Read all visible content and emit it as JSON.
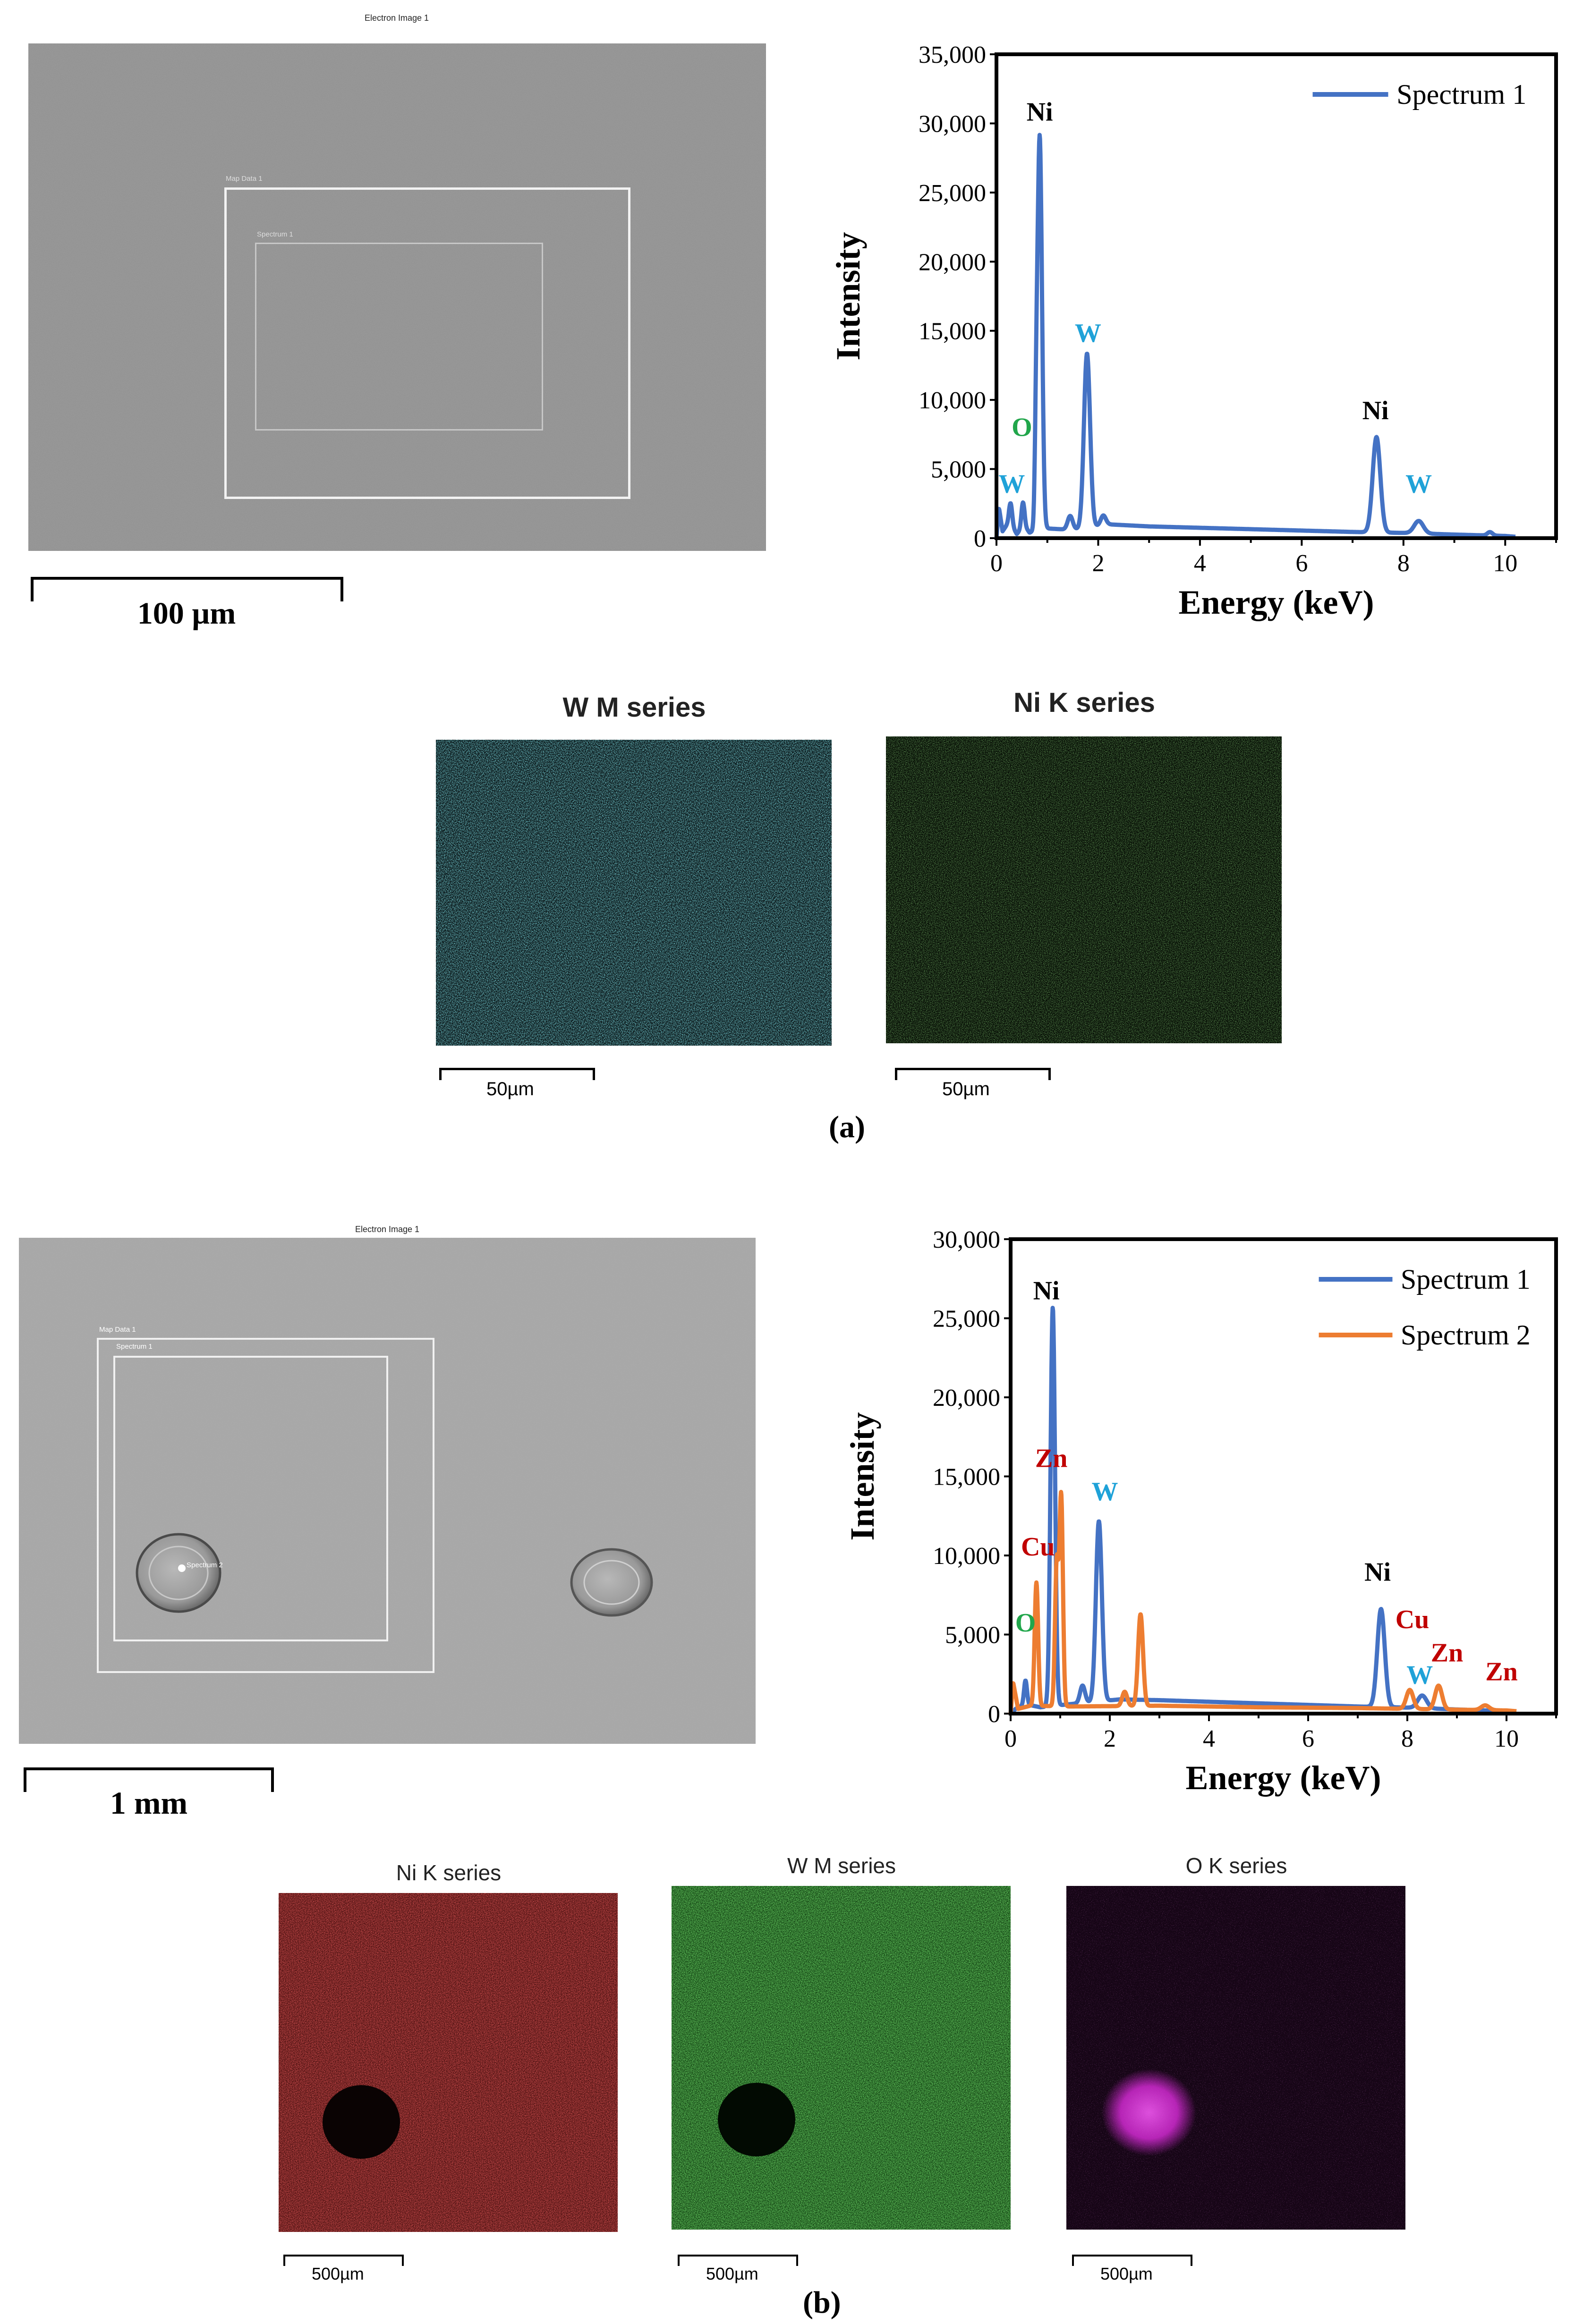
{
  "panel_a": {
    "label": "(a)",
    "sem": {
      "title": "Electron Image 1",
      "map_box": "Map Data 1",
      "spectrum_box": "Spectrum 1",
      "scale": "100 µm"
    },
    "maps": [
      {
        "title": "W M series",
        "scale": "50µm",
        "color": "#3fd9e8"
      },
      {
        "title": "Ni K series",
        "scale": "50µm",
        "color": "#3fa030"
      }
    ]
  },
  "panel_b": {
    "label": "(b)",
    "sem": {
      "title": "Electron Image 1",
      "map_box": "Map Data 1",
      "spectrum_box": "Spectrum 1",
      "spot": "Spectrum 2",
      "scale": "1 mm"
    },
    "maps": [
      {
        "title": "Ni K series",
        "scale": "500µm",
        "color": "#c41a1a"
      },
      {
        "title": "W M series",
        "scale": "500µm",
        "color": "#2fc42a"
      },
      {
        "title": "O K series",
        "scale": "500µm",
        "color": "#d62ad6"
      }
    ]
  },
  "chart_data": [
    {
      "type": "line",
      "xlabel": "Energy (keV)",
      "ylabel": "Intensity",
      "xlim": [
        0,
        11
      ],
      "ylim": [
        0,
        35000
      ],
      "xticks": [
        0,
        2,
        4,
        6,
        8,
        10
      ],
      "yticks": [
        0,
        5000,
        10000,
        15000,
        20000,
        25000,
        30000,
        35000
      ],
      "ytick_labels": [
        "0",
        "5,000",
        "10,000",
        "15,000",
        "20,000",
        "25,000",
        "30,000",
        "35,000"
      ],
      "legend_position": "top-right",
      "series": [
        {
          "name": "Spectrum 1",
          "color": "#4472c4",
          "baseline": [
            [
              0,
              0
            ],
            [
              0.05,
              2200
            ],
            [
              0.12,
              500
            ],
            [
              0.25,
              1200
            ],
            [
              0.4,
              300
            ],
            [
              0.55,
              900
            ],
            [
              0.65,
              400
            ],
            [
              1.0,
              700
            ],
            [
              1.5,
              600
            ],
            [
              2.2,
              1000
            ],
            [
              3,
              850
            ],
            [
              5,
              650
            ],
            [
              7,
              450
            ],
            [
              8,
              380
            ],
            [
              9,
              260
            ],
            [
              10,
              160
            ],
            [
              10.2,
              100
            ]
          ],
          "peaks": [
            [
              0.28,
              1500,
              0.03
            ],
            [
              0.52,
              1800,
              0.03
            ],
            [
              0.78,
              5000,
              0.025
            ],
            [
              0.85,
              28500,
              0.045
            ],
            [
              1.45,
              1000,
              0.05
            ],
            [
              1.78,
              12600,
              0.06
            ],
            [
              2.1,
              700,
              0.05
            ],
            [
              7.47,
              6900,
              0.075
            ],
            [
              8.3,
              900,
              0.09
            ],
            [
              9.7,
              250,
              0.05
            ]
          ]
        }
      ],
      "annotations": [
        {
          "text": "Ni",
          "x": 0.85,
          "y": 30200,
          "color": "#000000"
        },
        {
          "text": "W",
          "x": 1.8,
          "y": 14200,
          "color": "#1fa2d8"
        },
        {
          "text": "O",
          "x": 0.5,
          "y": 7400,
          "color": "#21a64b"
        },
        {
          "text": "W",
          "x": 0.3,
          "y": 3300,
          "color": "#1fa2d8"
        },
        {
          "text": "Ni",
          "x": 7.45,
          "y": 8600,
          "color": "#000000"
        },
        {
          "text": "W",
          "x": 8.3,
          "y": 3300,
          "color": "#1fa2d8"
        }
      ]
    },
    {
      "type": "line",
      "xlabel": "Energy (keV)",
      "ylabel": "Intensity",
      "xlim": [
        0,
        11
      ],
      "ylim": [
        0,
        30000
      ],
      "xticks": [
        0,
        2,
        4,
        6,
        8,
        10
      ],
      "yticks": [
        0,
        5000,
        10000,
        15000,
        20000,
        25000,
        30000
      ],
      "ytick_labels": [
        "0",
        "5,000",
        "10,000",
        "15,000",
        "20,000",
        "25,000",
        "30,000"
      ],
      "legend_position": "top-right",
      "series": [
        {
          "name": "Spectrum 1",
          "color": "#4472c4",
          "baseline": [
            [
              0,
              0
            ],
            [
              0.1,
              300
            ],
            [
              0.3,
              600
            ],
            [
              0.6,
              400
            ],
            [
              1.2,
              600
            ],
            [
              2.2,
              900
            ],
            [
              3,
              850
            ],
            [
              5,
              650
            ],
            [
              7,
              450
            ],
            [
              8,
              380
            ],
            [
              9,
              260
            ],
            [
              10,
              160
            ],
            [
              10.2,
              100
            ]
          ],
          "peaks": [
            [
              0.3,
              1500,
              0.03
            ],
            [
              0.85,
              25200,
              0.045
            ],
            [
              1.45,
              1100,
              0.05
            ],
            [
              1.78,
              11400,
              0.06
            ],
            [
              7.47,
              6200,
              0.075
            ],
            [
              8.3,
              800,
              0.09
            ]
          ]
        },
        {
          "name": "Spectrum 2",
          "color": "#ed7d31",
          "baseline": [
            [
              0,
              0
            ],
            [
              0.05,
              2000
            ],
            [
              0.15,
              300
            ],
            [
              0.4,
              500
            ],
            [
              1.2,
              450
            ],
            [
              3,
              500
            ],
            [
              5,
              400
            ],
            [
              7,
              350
            ],
            [
              8,
              300
            ],
            [
              9,
              250
            ],
            [
              10,
              200
            ],
            [
              10.2,
              150
            ]
          ],
          "peaks": [
            [
              0.52,
              7800,
              0.035
            ],
            [
              0.93,
              9000,
              0.035
            ],
            [
              1.02,
              13200,
              0.035
            ],
            [
              2.3,
              900,
              0.05
            ],
            [
              2.62,
              5800,
              0.05
            ],
            [
              8.05,
              1200,
              0.07
            ],
            [
              8.63,
              1500,
              0.07
            ],
            [
              9.57,
              300,
              0.08
            ]
          ]
        }
      ],
      "annotations": [
        {
          "text": "Ni",
          "x": 0.72,
          "y": 26200,
          "color": "#000000"
        },
        {
          "text": "Zn",
          "x": 0.82,
          "y": 15600,
          "color": "#c00000"
        },
        {
          "text": "W",
          "x": 1.9,
          "y": 13500,
          "color": "#1fa2d8"
        },
        {
          "text": "Cu",
          "x": 0.55,
          "y": 10000,
          "color": "#c00000"
        },
        {
          "text": "O",
          "x": 0.3,
          "y": 5200,
          "color": "#21a64b"
        },
        {
          "text": "Ni",
          "x": 7.4,
          "y": 8400,
          "color": "#000000"
        },
        {
          "text": "Cu",
          "x": 8.1,
          "y": 5400,
          "color": "#c00000"
        },
        {
          "text": "Zn",
          "x": 8.8,
          "y": 3300,
          "color": "#c00000"
        },
        {
          "text": "W",
          "x": 8.25,
          "y": 1900,
          "color": "#1fa2d8"
        },
        {
          "text": "Zn",
          "x": 9.9,
          "y": 2100,
          "color": "#c00000"
        }
      ]
    }
  ]
}
